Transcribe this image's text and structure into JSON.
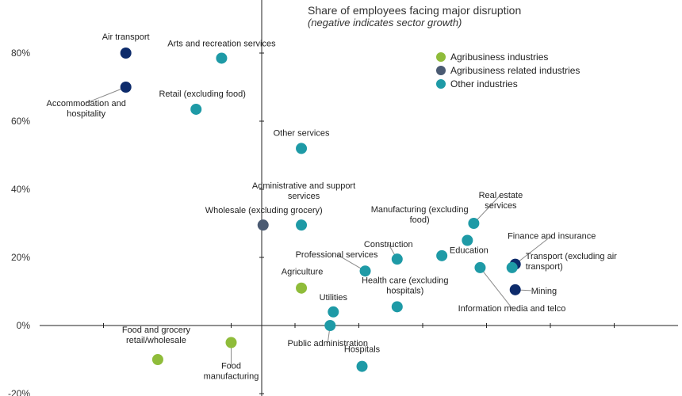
{
  "chart_data": {
    "type": "scatter",
    "title": "Share of employees facing major disruption",
    "subtitle": "(negative indicates sector growth)",
    "y_ticks": [
      "80%",
      "60%",
      "40%",
      "20%",
      "0%",
      "-20%"
    ],
    "y_tick_values": [
      80,
      60,
      40,
      20,
      0,
      -20
    ],
    "ylim": [
      -20,
      90
    ],
    "xlim": [
      0,
      100
    ],
    "grid": false,
    "legend": "top-right",
    "series": [
      {
        "name": "Agribusiness industries",
        "color": "#8fbc3a"
      },
      {
        "name": "Agribusiness related industries",
        "color": "#4a5a72"
      },
      {
        "name": "Other industries",
        "color": "#1e9aa6"
      }
    ],
    "highlight_color": "#0d2b6b",
    "points": [
      {
        "label": "Air transport",
        "x": 13.5,
        "y": 80,
        "series": "Other industries",
        "highlight": true
      },
      {
        "label": "Arts and recreation services",
        "x": 28.5,
        "y": 78.5,
        "series": "Other industries"
      },
      {
        "label": "Accommodation and hospitality",
        "x": 13.5,
        "y": 70,
        "series": "Other industries",
        "highlight": true
      },
      {
        "label": "Retail (excluding food)",
        "x": 24.5,
        "y": 63.5,
        "series": "Other industries"
      },
      {
        "label": "Other services",
        "x": 41,
        "y": 52,
        "series": "Other industries"
      },
      {
        "label": "Administrative and support services",
        "x": 41,
        "y": 29.5,
        "series": "Other industries"
      },
      {
        "label": "Wholesale (excluding grocery)",
        "x": 35,
        "y": 29.5,
        "series": "Agribusiness related industries"
      },
      {
        "label": "Manufacturing (excluding food)",
        "x": 63,
        "y": 20.5,
        "series": "Other industries"
      },
      {
        "label": "Real estate services",
        "x": 68,
        "y": 30,
        "series": "Other industries"
      },
      {
        "label": "Education",
        "x": 67,
        "y": 25,
        "series": "Other industries"
      },
      {
        "label": "Construction",
        "x": 56,
        "y": 19.5,
        "series": "Other industries"
      },
      {
        "label": "Finance and insurance",
        "x": 74.5,
        "y": 18,
        "series": "Other industries",
        "highlight": true
      },
      {
        "label": "Transport (excluding air transport)",
        "x": 74,
        "y": 17,
        "series": "Other industries"
      },
      {
        "label": "Information media and telco",
        "x": 69,
        "y": 17,
        "series": "Other industries"
      },
      {
        "label": "Professional services",
        "x": 51,
        "y": 16,
        "series": "Other industries"
      },
      {
        "label": "Mining",
        "x": 74.5,
        "y": 10.5,
        "series": "Other industries",
        "highlight": true
      },
      {
        "label": "Agriculture",
        "x": 41,
        "y": 11,
        "series": "Agribusiness industries"
      },
      {
        "label": "Utilities",
        "x": 46,
        "y": 4,
        "series": "Other industries"
      },
      {
        "label": "Health care (excluding hospitals)",
        "x": 56,
        "y": 5.5,
        "series": "Other industries"
      },
      {
        "label": "Public administration",
        "x": 45.5,
        "y": 0,
        "series": "Other industries"
      },
      {
        "label": "Food and grocery retail/wholesale",
        "x": 18.5,
        "y": -10,
        "series": "Agribusiness industries"
      },
      {
        "label": "Food manufacturing",
        "x": 30,
        "y": -5,
        "series": "Agribusiness industries"
      },
      {
        "label": "Hospitals",
        "x": 50.5,
        "y": -12,
        "series": "Other industries"
      }
    ]
  }
}
